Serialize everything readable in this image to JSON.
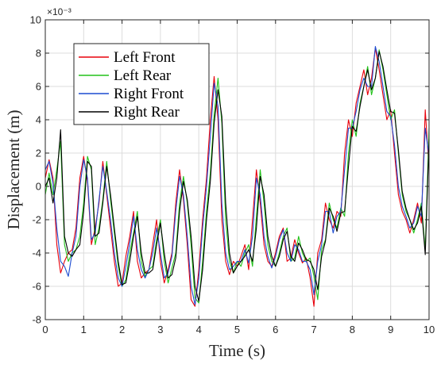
{
  "chart_data": {
    "type": "line",
    "title": "",
    "xlabel": "Time (s)",
    "ylabel": "Displacement (m)",
    "y_exponent_label": "×10⁻³",
    "xlim": [
      0,
      10
    ],
    "ylim": [
      -8,
      10
    ],
    "xticks": [
      0,
      1,
      2,
      3,
      4,
      5,
      6,
      7,
      8,
      9,
      10
    ],
    "yticks": [
      -8,
      -6,
      -4,
      -2,
      0,
      2,
      4,
      6,
      8,
      10
    ],
    "xtick_labels": [
      "0",
      "1",
      "2",
      "3",
      "4",
      "5",
      "6",
      "7",
      "8",
      "9",
      "10"
    ],
    "ytick_labels": [
      "-8",
      "-6",
      "-4",
      "-2",
      "0",
      "2",
      "4",
      "6",
      "8",
      "10"
    ],
    "grid": true,
    "legend_position": "top-left",
    "series": [
      {
        "name": "Left Front",
        "color": "#e8000b",
        "x": [
          0,
          0.1,
          0.2,
          0.3,
          0.4,
          0.5,
          0.6,
          0.7,
          0.8,
          0.9,
          1,
          1.1,
          1.2,
          1.3,
          1.4,
          1.5,
          1.6,
          1.7,
          1.8,
          1.9,
          2,
          2.1,
          2.2,
          2.3,
          2.4,
          2.5,
          2.6,
          2.7,
          2.8,
          2.9,
          3,
          3.1,
          3.2,
          3.3,
          3.4,
          3.5,
          3.6,
          3.7,
          3.8,
          3.9,
          4,
          4.1,
          4.2,
          4.3,
          4.4,
          4.5,
          4.6,
          4.7,
          4.8,
          4.9,
          5,
          5.1,
          5.2,
          5.3,
          5.4,
          5.5,
          5.6,
          5.7,
          5.8,
          5.9,
          6,
          6.1,
          6.2,
          6.3,
          6.4,
          6.5,
          6.6,
          6.7,
          6.8,
          6.9,
          7,
          7.1,
          7.2,
          7.3,
          7.4,
          7.5,
          7.6,
          7.7,
          7.8,
          7.9,
          8,
          8.1,
          8.2,
          8.3,
          8.4,
          8.5,
          8.6,
          8.7,
          8.8,
          8.9,
          9,
          9.1,
          9.2,
          9.3,
          9.4,
          9.5,
          9.6,
          9.7,
          9.8,
          9.9,
          10
        ],
        "y": [
          0.5,
          1.6,
          0.5,
          -3.5,
          -5.2,
          -4.5,
          -4,
          -3.8,
          -2.5,
          0.5,
          1.8,
          0.3,
          -3.5,
          -2.5,
          -1,
          1.5,
          -0.5,
          -2.5,
          -4.5,
          -6,
          -5.8,
          -4.2,
          -3,
          -1.5,
          -4.5,
          -5.5,
          -5.2,
          -5,
          -3.5,
          -2,
          -4.5,
          -5.8,
          -5,
          -4,
          -1,
          1,
          -0.8,
          -3.5,
          -6.8,
          -7.2,
          -5,
          -2,
          0.5,
          4,
          6.6,
          4,
          -2,
          -4.5,
          -5.3,
          -4.5,
          -4.8,
          -4.2,
          -3.5,
          -5,
          -2,
          1,
          -1,
          -3.5,
          -4.5,
          -4.8,
          -4,
          -3,
          -2.5,
          -4.5,
          -4.3,
          -3.2,
          -4,
          -4.6,
          -4.3,
          -5.5,
          -7.2,
          -4,
          -3.2,
          -1,
          -2,
          -2.5,
          -1.5,
          -1.8,
          2,
          4,
          3,
          5,
          6,
          7,
          5.5,
          6.5,
          8.3,
          7,
          5.5,
          4,
          4.6,
          2,
          -0.5,
          -1.5,
          -2,
          -2.8,
          -2,
          -1,
          -2.2,
          4.6,
          1
        ]
      },
      {
        "name": "Left Rear",
        "color": "#22c21a",
        "x": [
          0,
          0.1,
          0.2,
          0.3,
          0.4,
          0.5,
          0.6,
          0.7,
          0.8,
          0.9,
          1,
          1.1,
          1.2,
          1.3,
          1.4,
          1.5,
          1.6,
          1.7,
          1.8,
          1.9,
          2,
          2.1,
          2.2,
          2.3,
          2.4,
          2.5,
          2.6,
          2.7,
          2.8,
          2.9,
          3,
          3.1,
          3.2,
          3.3,
          3.4,
          3.5,
          3.6,
          3.7,
          3.8,
          3.9,
          4,
          4.1,
          4.2,
          4.3,
          4.4,
          4.5,
          4.6,
          4.7,
          4.8,
          4.9,
          5,
          5.1,
          5.2,
          5.3,
          5.4,
          5.5,
          5.6,
          5.7,
          5.8,
          5.9,
          6,
          6.1,
          6.2,
          6.3,
          6.4,
          6.5,
          6.6,
          6.7,
          6.8,
          6.9,
          7,
          7.1,
          7.2,
          7.3,
          7.4,
          7.5,
          7.6,
          7.7,
          7.8,
          7.9,
          8,
          8.1,
          8.2,
          8.3,
          8.4,
          8.5,
          8.6,
          8.7,
          8.8,
          8.9,
          9,
          9.1,
          9.2,
          9.3,
          9.4,
          9.5,
          9.6,
          9.7,
          9.8,
          9.9,
          10
        ],
        "y": [
          -0.5,
          0.8,
          -0.5,
          1,
          2.7,
          -3.5,
          -4.5,
          -4,
          -3.8,
          -3,
          -1,
          1.8,
          1,
          -3.5,
          -2.5,
          -0.8,
          1.5,
          -0.8,
          -2.8,
          -4.8,
          -6,
          -5.6,
          -4,
          -2.8,
          -1.5,
          -4.5,
          -5.4,
          -5,
          -4.8,
          -3.2,
          -2,
          -4.5,
          -5.8,
          -4.9,
          -4,
          -1,
          0.6,
          -1,
          -3.5,
          -6.7,
          -7,
          -4.5,
          -1.5,
          0.8,
          4.3,
          6.5,
          3.8,
          -2,
          -4.5,
          -5.2,
          -4.5,
          -4.8,
          -4,
          -3.5,
          -4.8,
          -1.8,
          1,
          -1,
          -3.5,
          -4.5,
          -4.8,
          -4,
          -3,
          -2.5,
          -4.5,
          -4.3,
          -3,
          -4,
          -4.5,
          -4.3,
          -5.4,
          -6.8,
          -3.8,
          -3.2,
          -1,
          -2,
          -2.5,
          -1.3,
          -1.8,
          2,
          4,
          3,
          5,
          6,
          7.2,
          5.5,
          6.5,
          8.2,
          7,
          5.5,
          4,
          4.6,
          2,
          -0.5,
          -1.5,
          -2,
          -2.8,
          -2,
          -1,
          -3.8,
          3.5
        ]
      },
      {
        "name": "Right Front",
        "color": "#1c4cd1",
        "x": [
          0,
          0.1,
          0.2,
          0.3,
          0.4,
          0.5,
          0.6,
          0.7,
          0.8,
          0.9,
          1,
          1.1,
          1.2,
          1.3,
          1.4,
          1.5,
          1.6,
          1.7,
          1.8,
          1.9,
          2,
          2.1,
          2.2,
          2.3,
          2.4,
          2.5,
          2.6,
          2.7,
          2.8,
          2.9,
          3,
          3.1,
          3.2,
          3.3,
          3.4,
          3.5,
          3.6,
          3.7,
          3.8,
          3.9,
          4,
          4.1,
          4.2,
          4.3,
          4.4,
          4.5,
          4.6,
          4.7,
          4.8,
          4.9,
          5,
          5.1,
          5.2,
          5.3,
          5.4,
          5.5,
          5.6,
          5.7,
          5.8,
          5.9,
          6,
          6.1,
          6.2,
          6.3,
          6.4,
          6.5,
          6.6,
          6.7,
          6.8,
          6.9,
          7,
          7.1,
          7.2,
          7.3,
          7.4,
          7.5,
          7.6,
          7.7,
          7.8,
          7.9,
          8,
          8.1,
          8.2,
          8.3,
          8.4,
          8.5,
          8.6,
          8.7,
          8.8,
          8.9,
          9,
          9.1,
          9.2,
          9.3,
          9.4,
          9.5,
          9.6,
          9.7,
          9.8,
          9.9,
          10
        ],
        "y": [
          1,
          1.5,
          0.2,
          -2.5,
          -4.5,
          -4.8,
          -5.4,
          -4,
          -3,
          0,
          1.6,
          0.5,
          -3.2,
          -2.8,
          -0.8,
          1.2,
          -0.3,
          -2,
          -4,
          -5.5,
          -6,
          -4.8,
          -3.4,
          -1.8,
          -3.8,
          -5,
          -5.5,
          -5,
          -4,
          -2.5,
          -4,
          -5.5,
          -5.2,
          -4.2,
          -1.5,
          0.6,
          -0.5,
          -3,
          -6,
          -7.1,
          -5.5,
          -2.5,
          0,
          3,
          6.2,
          4.8,
          -1,
          -4,
          -5,
          -4.8,
          -4.5,
          -4.5,
          -3.8,
          -4.6,
          -3,
          0.5,
          -0.5,
          -3,
          -4.2,
          -4.9,
          -4.2,
          -3.2,
          -2.6,
          -4,
          -4.5,
          -3.5,
          -3.8,
          -4.5,
          -4.5,
          -5,
          -6.5,
          -4.5,
          -3.5,
          -1.5,
          -1.5,
          -2.8,
          -1.8,
          -1.5,
          1,
          3.5,
          3.5,
          4.5,
          5.8,
          6.5,
          6,
          6,
          8.4,
          7.5,
          6,
          4.5,
          4.2,
          2.5,
          0,
          -1.2,
          -1.8,
          -2.5,
          -2.2,
          -1.2,
          -1.8,
          3.5,
          1.8
        ]
      },
      {
        "name": "Right Rear",
        "color": "#000000",
        "x": [
          0,
          0.1,
          0.2,
          0.3,
          0.4,
          0.5,
          0.6,
          0.7,
          0.8,
          0.9,
          1,
          1.1,
          1.2,
          1.3,
          1.4,
          1.5,
          1.6,
          1.7,
          1.8,
          1.9,
          2,
          2.1,
          2.2,
          2.3,
          2.4,
          2.5,
          2.6,
          2.7,
          2.8,
          2.9,
          3,
          3.1,
          3.2,
          3.3,
          3.4,
          3.5,
          3.6,
          3.7,
          3.8,
          3.9,
          4,
          4.1,
          4.2,
          4.3,
          4.4,
          4.5,
          4.6,
          4.7,
          4.8,
          4.9,
          5,
          5.1,
          5.2,
          5.3,
          5.4,
          5.5,
          5.6,
          5.7,
          5.8,
          5.9,
          6,
          6.1,
          6.2,
          6.3,
          6.4,
          6.5,
          6.6,
          6.7,
          6.8,
          6.9,
          7,
          7.1,
          7.2,
          7.3,
          7.4,
          7.5,
          7.6,
          7.7,
          7.8,
          7.9,
          8,
          8.1,
          8.2,
          8.3,
          8.4,
          8.5,
          8.6,
          8.7,
          8.8,
          8.9,
          9,
          9.1,
          9.2,
          9.3,
          9.4,
          9.5,
          9.6,
          9.7,
          9.8,
          9.9,
          10
        ],
        "y": [
          0,
          0.5,
          -1,
          0.5,
          3.4,
          -3,
          -4,
          -4.2,
          -3.8,
          -3.5,
          -1.5,
          1.5,
          1.2,
          -3,
          -2.8,
          -1,
          1.2,
          -0.5,
          -2.5,
          -4.5,
          -5.9,
          -5.8,
          -4.5,
          -3,
          -1.8,
          -4,
          -5.2,
          -5.2,
          -5,
          -3.5,
          -2.2,
          -4,
          -5.5,
          -5.3,
          -4.3,
          -1.5,
          0.3,
          -0.8,
          -3,
          -6,
          -6.9,
          -5,
          -2,
          0.3,
          3.8,
          5.8,
          4.2,
          -1,
          -4,
          -5.2,
          -4.8,
          -4.5,
          -4.2,
          -3.8,
          -4.5,
          -2.5,
          0.6,
          -0.5,
          -3,
          -4.2,
          -4.8,
          -4.2,
          -3.2,
          -2.7,
          -4.2,
          -4.5,
          -3.4,
          -3.8,
          -4.4,
          -4.5,
          -5,
          -6.2,
          -4.2,
          -3.3,
          -1.3,
          -1.8,
          -2.7,
          -1.6,
          -1.5,
          1.2,
          3.6,
          3.3,
          4.8,
          6,
          7,
          5.8,
          6.5,
          8.1,
          7.2,
          5.8,
          4.5,
          4.4,
          2.2,
          -0.3,
          -1.3,
          -2,
          -2.6,
          -2.2,
          -1.2,
          -4.1,
          2.8
        ]
      }
    ]
  }
}
